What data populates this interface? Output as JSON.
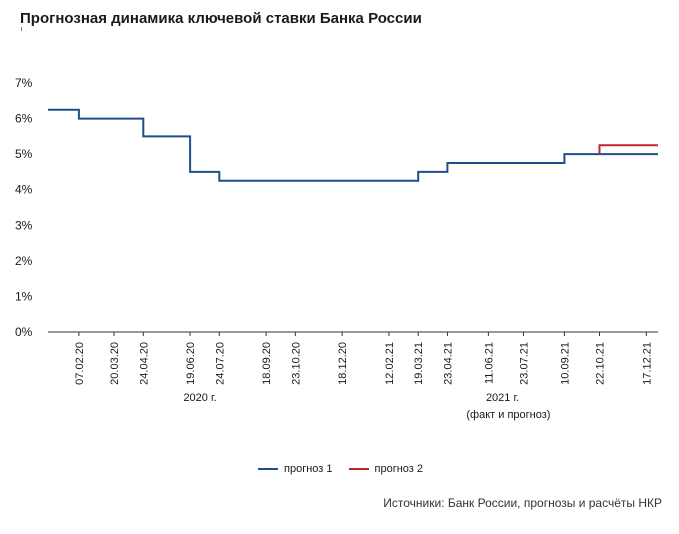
{
  "title": "Прогнозная динамика ключевой ставки Банка России",
  "source": "Источники: Банк России, прогнозы и расчёты НКР",
  "colors": {
    "series1": "#1f4e8c",
    "series2": "#c0272d",
    "axis": "#333333",
    "text": "#1a1a1a"
  },
  "chart_data": {
    "type": "line",
    "title": "Прогнозная динамика ключевой ставки Банка России",
    "xlabel": "",
    "ylabel": "",
    "ylim": [
      0,
      7
    ],
    "grid": false,
    "legend_position": "bottom-center",
    "y_ticks": [
      "0%",
      "1%",
      "2%",
      "3%",
      "4%",
      "5%",
      "6%",
      "7%"
    ],
    "x_ticks": [
      "07.02.20",
      "20.03.20",
      "24.04.20",
      "19.06.20",
      "24.07.20",
      "18.09.20",
      "23.10.20",
      "18.12.20",
      "12.02.21",
      "19.03.21",
      "23.04.21",
      "11.06.21",
      "23.07.21",
      "10.09.21",
      "22.10.21",
      "17.12.21"
    ],
    "x_groups": [
      {
        "label": "2020 г.",
        "sublabel": ""
      },
      {
        "label": "2021 г.",
        "sublabel": "(факт и прогноз)"
      }
    ],
    "series": [
      {
        "name": "прогноз 1",
        "points": [
          [
            "2020-01-01",
            6.25
          ],
          [
            "2020-02-07",
            6.25
          ],
          [
            "2020-02-07",
            6.0
          ],
          [
            "2020-04-24",
            6.0
          ],
          [
            "2020-04-24",
            5.5
          ],
          [
            "2020-06-19",
            5.5
          ],
          [
            "2020-06-19",
            4.5
          ],
          [
            "2020-07-24",
            4.5
          ],
          [
            "2020-07-24",
            4.25
          ],
          [
            "2021-03-19",
            4.25
          ],
          [
            "2021-03-19",
            4.5
          ],
          [
            "2021-04-23",
            4.5
          ],
          [
            "2021-04-23",
            4.75
          ],
          [
            "2021-09-10",
            4.75
          ],
          [
            "2021-09-10",
            5.0
          ],
          [
            "2021-12-31",
            5.0
          ]
        ]
      },
      {
        "name": "прогноз 2",
        "points": [
          [
            "2021-10-22",
            5.0
          ],
          [
            "2021-10-22",
            5.25
          ],
          [
            "2021-12-31",
            5.25
          ]
        ]
      }
    ]
  }
}
